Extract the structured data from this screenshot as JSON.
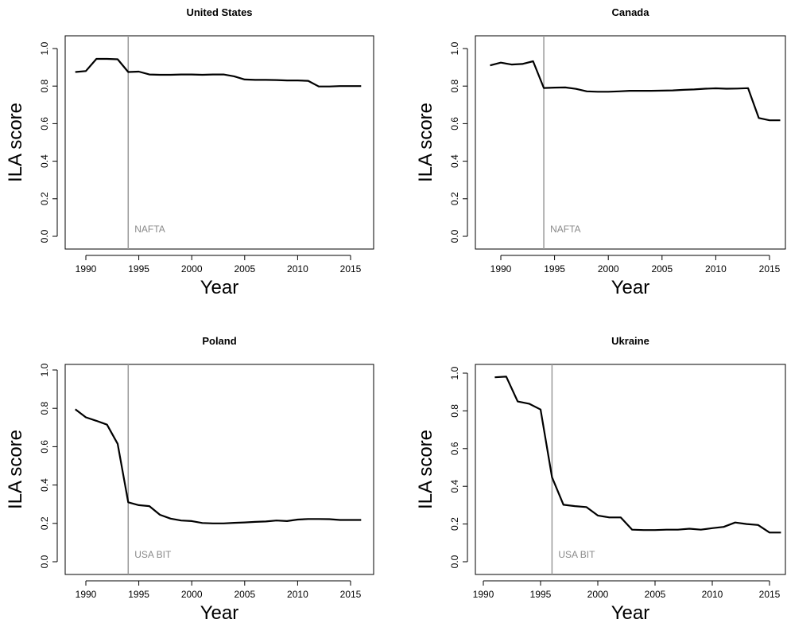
{
  "chart_data": [
    {
      "type": "line",
      "title": "United States",
      "xlabel": "Year",
      "ylabel": "ILA score",
      "xlim": [
        1988,
        2016
      ],
      "ylim": [
        0,
        1
      ],
      "xticks": [
        1990,
        1995,
        2000,
        2005,
        2010,
        2015
      ],
      "yticks": [
        0.0,
        0.2,
        0.4,
        0.6,
        0.8,
        1.0
      ],
      "ytick_labels": [
        "0.0",
        "0.2",
        "0.4",
        "0.6",
        "0.8",
        "1.0"
      ],
      "grid": false,
      "annotation": {
        "x": 1994,
        "label": "NAFTA",
        "color": "#9a9a9a"
      },
      "series": [
        {
          "x": [
            1989,
            1990,
            1991,
            1992,
            1993,
            1994,
            1995,
            1996,
            1997,
            1998,
            1999,
            2000,
            2001,
            2002,
            2003,
            2004,
            2005,
            2006,
            2007,
            2008,
            2009,
            2010,
            2011,
            2012,
            2013,
            2014,
            2015,
            2016
          ],
          "y": [
            0.875,
            0.88,
            0.945,
            0.945,
            0.943,
            0.875,
            0.877,
            0.862,
            0.86,
            0.86,
            0.862,
            0.862,
            0.86,
            0.862,
            0.862,
            0.852,
            0.835,
            0.833,
            0.833,
            0.832,
            0.83,
            0.83,
            0.828,
            0.798,
            0.798,
            0.8,
            0.8,
            0.8
          ]
        }
      ]
    },
    {
      "type": "line",
      "title": "Canada",
      "xlabel": "Year",
      "ylabel": "ILA score",
      "xlim": [
        1988,
        2016
      ],
      "ylim": [
        0,
        1
      ],
      "xticks": [
        1990,
        1995,
        2000,
        2005,
        2010,
        2015
      ],
      "yticks": [
        0.0,
        0.2,
        0.4,
        0.6,
        0.8,
        1.0
      ],
      "ytick_labels": [
        "0.0",
        "0.2",
        "0.4",
        "0.6",
        "0.8",
        "1.0"
      ],
      "grid": false,
      "annotation": {
        "x": 1994,
        "label": "NAFTA",
        "color": "#9a9a9a"
      },
      "series": [
        {
          "x": [
            1989,
            1990,
            1991,
            1992,
            1993,
            1994,
            1995,
            1996,
            1997,
            1998,
            1999,
            2000,
            2001,
            2002,
            2003,
            2004,
            2005,
            2006,
            2007,
            2008,
            2009,
            2010,
            2011,
            2012,
            2013,
            2014,
            2015,
            2016
          ],
          "y": [
            0.91,
            0.925,
            0.915,
            0.918,
            0.932,
            0.79,
            0.792,
            0.793,
            0.785,
            0.772,
            0.77,
            0.77,
            0.772,
            0.775,
            0.775,
            0.775,
            0.776,
            0.777,
            0.78,
            0.782,
            0.786,
            0.788,
            0.786,
            0.787,
            0.789,
            0.63,
            0.618,
            0.618
          ]
        }
      ]
    },
    {
      "type": "line",
      "title": "Poland",
      "xlabel": "Year",
      "ylabel": "ILA score",
      "xlim": [
        1988,
        2016
      ],
      "ylim": [
        0,
        1
      ],
      "xticks": [
        1990,
        1995,
        2000,
        2005,
        2010,
        2015
      ],
      "yticks": [
        0.0,
        0.2,
        0.4,
        0.6,
        0.8,
        1.0
      ],
      "ytick_labels": [
        "0.0",
        "0.2",
        "0.4",
        "0.6",
        "0.8",
        "1.0"
      ],
      "grid": false,
      "annotation": {
        "x": 1994,
        "label": "USA BIT",
        "color": "#9a9a9a"
      },
      "series": [
        {
          "x": [
            1989,
            1990,
            1991,
            1992,
            1993,
            1994,
            1995,
            1996,
            1997,
            1998,
            1999,
            2000,
            2001,
            2002,
            2003,
            2004,
            2005,
            2006,
            2007,
            2008,
            2009,
            2010,
            2011,
            2012,
            2013,
            2014,
            2015,
            2016
          ],
          "y": [
            0.795,
            0.753,
            0.735,
            0.715,
            0.615,
            0.31,
            0.295,
            0.29,
            0.245,
            0.225,
            0.215,
            0.212,
            0.202,
            0.2,
            0.2,
            0.203,
            0.205,
            0.208,
            0.21,
            0.215,
            0.212,
            0.22,
            0.223,
            0.223,
            0.222,
            0.218,
            0.218,
            0.218
          ]
        }
      ]
    },
    {
      "type": "line",
      "title": "Ukraine",
      "xlabel": "Year",
      "ylabel": "ILA score",
      "xlim": [
        1990,
        2016
      ],
      "ylim": [
        0,
        1
      ],
      "xticks": [
        1990,
        1995,
        2000,
        2005,
        2010,
        2015
      ],
      "yticks": [
        0.0,
        0.2,
        0.4,
        0.6,
        0.8,
        1.0
      ],
      "ytick_labels": [
        "0.0",
        "0.2",
        "0.4",
        "0.6",
        "0.8",
        "1.0"
      ],
      "grid": false,
      "annotation": {
        "x": 1996,
        "label": "USA BIT",
        "color": "#9a9a9a"
      },
      "series": [
        {
          "x": [
            1991,
            1992,
            1993,
            1994,
            1995,
            1996,
            1997,
            1998,
            1999,
            2000,
            2001,
            2002,
            2003,
            2004,
            2005,
            2006,
            2007,
            2008,
            2009,
            2010,
            2011,
            2012,
            2013,
            2014,
            2015,
            2016
          ],
          "y": [
            0.978,
            0.982,
            0.85,
            0.838,
            0.807,
            0.448,
            0.302,
            0.295,
            0.29,
            0.245,
            0.235,
            0.235,
            0.17,
            0.168,
            0.168,
            0.17,
            0.17,
            0.175,
            0.17,
            0.178,
            0.185,
            0.208,
            0.2,
            0.195,
            0.155,
            0.155
          ]
        }
      ]
    }
  ]
}
